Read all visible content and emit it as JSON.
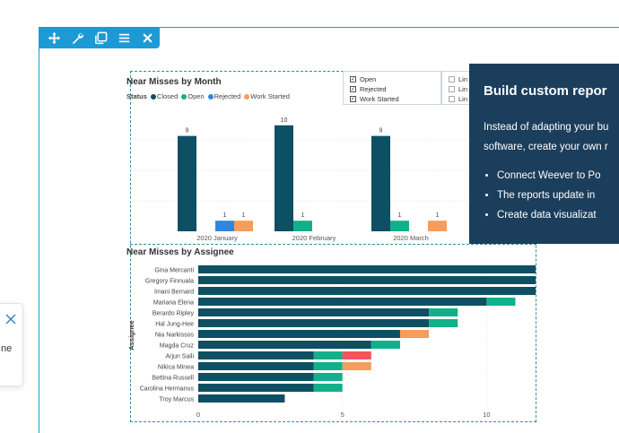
{
  "toolbar": {
    "icons": [
      "move-icon",
      "wrench-icon",
      "duplicate-icon",
      "menu-icon",
      "close-icon"
    ]
  },
  "side_card": {
    "text_fragment": "ne"
  },
  "slicer_status": {
    "items": [
      {
        "label": "Open",
        "checked": true
      },
      {
        "label": "Rejected",
        "checked": true
      },
      {
        "label": "Work Started",
        "checked": true
      }
    ]
  },
  "slicer_second": {
    "items": [
      {
        "label": "Lin",
        "checked": false
      },
      {
        "label": "Lin",
        "checked": false
      },
      {
        "label": "Lin",
        "checked": false
      }
    ]
  },
  "tooltip": {
    "title": "Build custom repor",
    "body_line1": "Instead of adapting your bu",
    "body_line2": "software, create your own r",
    "bullets": [
      "Connect Weever to Po",
      "The reports update in",
      "Create data visualizat"
    ]
  },
  "colors": {
    "closed": "#0d4f63",
    "open": "#12b08a",
    "rejected": "#2f86e0",
    "work_started": "#f79c5a",
    "rejected_bar": "#f2545b",
    "frame": "#1d9ad6",
    "tooltip_bg": "#1b3e5c"
  },
  "chart_data": [
    {
      "type": "bar",
      "title": "Near Misses by Month",
      "legend_title": "Status",
      "legend": [
        "Closed",
        "Open",
        "Rejected",
        "Work Started"
      ],
      "categories": [
        "2020 January",
        "2020 February",
        "2020 March"
      ],
      "series": [
        {
          "name": "Closed",
          "values": [
            9,
            10,
            9
          ]
        },
        {
          "name": "Open",
          "values": [
            0,
            1,
            1
          ]
        },
        {
          "name": "Rejected",
          "values": [
            1,
            0,
            0
          ]
        },
        {
          "name": "Work Started",
          "values": [
            1,
            0,
            1
          ]
        }
      ],
      "ylim": [
        0,
        11
      ]
    },
    {
      "type": "bar",
      "orientation": "horizontal",
      "stacked": true,
      "title": "Near Misses by Assignee",
      "ylabel": "Assignee",
      "categories": [
        "Gina Mercanti",
        "Gregory Finnuala",
        "Imani Bernard",
        "Mariana Elena",
        "Berardo Ripley",
        "Hal Jung-Hee",
        "Nia Narkissos",
        "Magda Cruz",
        "Arjun Saili",
        "Nikica Minea",
        "Bettina Russell",
        "Carolina Hermanus",
        "Troy Marcus"
      ],
      "series": [
        {
          "name": "Closed",
          "values": [
            12,
            12,
            12,
            10,
            8,
            8,
            7,
            6,
            4,
            4,
            4,
            4,
            3
          ]
        },
        {
          "name": "Open",
          "values": [
            0,
            0,
            0,
            1,
            1,
            1,
            0,
            1,
            1,
            1,
            1,
            1,
            0
          ]
        },
        {
          "name": "Rejected",
          "values": [
            0,
            0,
            0,
            0,
            0,
            0,
            0,
            0,
            1,
            0,
            0,
            0,
            0
          ]
        },
        {
          "name": "Work Started",
          "values": [
            0,
            0,
            0,
            0,
            0,
            0,
            1,
            0,
            0,
            1,
            0,
            0,
            0
          ]
        }
      ],
      "xticks": [
        0,
        5,
        10
      ],
      "xlim": [
        0,
        11.7
      ]
    }
  ]
}
